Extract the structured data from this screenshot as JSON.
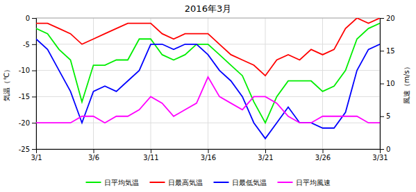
{
  "chart_data": {
    "type": "line",
    "title": "2016年3月",
    "x": [
      1,
      2,
      3,
      4,
      5,
      6,
      7,
      8,
      9,
      10,
      11,
      12,
      13,
      14,
      15,
      16,
      17,
      18,
      19,
      20,
      21,
      22,
      23,
      24,
      25,
      26,
      27,
      28,
      29,
      30,
      31
    ],
    "xlim": [
      1,
      31
    ],
    "xticks": [
      {
        "value": 1,
        "label": "3/1"
      },
      {
        "value": 6,
        "label": "3/6"
      },
      {
        "value": 11,
        "label": "3/11"
      },
      {
        "value": 16,
        "label": "3/16"
      },
      {
        "value": 21,
        "label": "3/21"
      },
      {
        "value": 26,
        "label": "3/26"
      },
      {
        "value": 31,
        "label": "3/31"
      }
    ],
    "ylim": [
      -25,
      0
    ],
    "yticks": [
      0,
      -5,
      -10,
      -15,
      -20,
      -25
    ],
    "y2lim": [
      0,
      20
    ],
    "y2ticks": [
      0,
      5,
      10,
      15,
      20
    ],
    "y_label": "気温（℃）",
    "y2_label": "風速（m/s）",
    "grid": true,
    "legend": "bottom",
    "series": [
      {
        "name": "日平均気温",
        "color": "#00ee00",
        "values": [
          -2,
          -3,
          -6,
          -8,
          -16,
          -9,
          -9,
          -8,
          -8,
          -4,
          -4,
          -7,
          -8,
          -7,
          -5,
          -5,
          -7,
          -9,
          -11,
          -16,
          -20,
          -15,
          -12,
          -12,
          -12,
          -14,
          -13,
          -10,
          -4,
          -2,
          -1
        ]
      },
      {
        "name": "日最高気温",
        "color": "#ff0000",
        "values": [
          -1,
          -1,
          -2,
          -3,
          -5,
          -4,
          -3,
          -2,
          -1,
          -1,
          -1,
          -3,
          -4,
          -3,
          -3,
          -3,
          -5,
          -7,
          -8,
          -9,
          -11,
          -8,
          -7,
          -8,
          -6,
          -7,
          -6,
          -2,
          0,
          -1,
          0
        ]
      },
      {
        "name": "日最低気温",
        "color": "#0000ff",
        "values": [
          -4,
          -6,
          -10,
          -14,
          -20,
          -14,
          -13,
          -14,
          -12,
          -10,
          -5,
          -5,
          -6,
          -5,
          -5,
          -7,
          -10,
          -12,
          -15,
          -20,
          -23,
          -20,
          -17,
          -20,
          -20,
          -21,
          -21,
          -18,
          -10,
          -6,
          -5
        ]
      },
      {
        "name": "日平均風速",
        "color": "#ff00ff",
        "axis": "y2",
        "values": [
          4,
          4,
          4,
          4,
          5,
          5,
          4,
          5,
          5,
          6,
          8,
          7,
          5,
          6,
          7,
          11,
          8,
          7,
          6,
          8,
          8,
          7,
          5,
          4,
          4,
          5,
          5,
          5,
          5,
          4,
          4
        ]
      }
    ]
  }
}
